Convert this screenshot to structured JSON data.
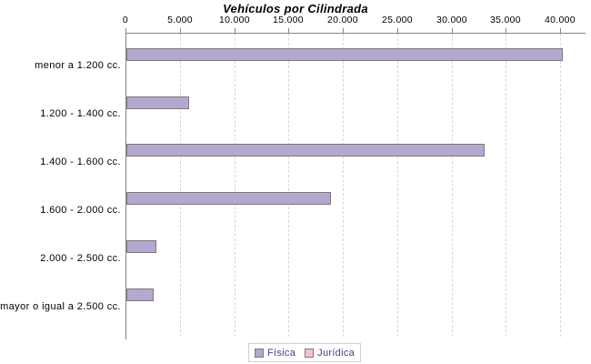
{
  "chart_data": {
    "type": "bar",
    "orientation": "horizontal",
    "title": "Vehículos por Cilindrada",
    "categories": [
      "menor a 1.200 cc.",
      "1.200 - 1.400 cc.",
      "1.400 - 1.600 cc.",
      "1.600 - 2.000 cc.",
      "2.000 - 2.500 cc.",
      "mayor o igual a 2.500 cc."
    ],
    "series": [
      {
        "name": "Física",
        "color": "#b4a8d1",
        "border_color": "#7a7a7a",
        "values": [
          40200,
          5800,
          33000,
          18800,
          2800,
          2500
        ]
      },
      {
        "name": "Jurídica",
        "color": "#f4c4c4",
        "border_color": "#7a7a7a",
        "values": [
          0,
          0,
          0,
          0,
          0,
          0
        ]
      }
    ],
    "x_axis": {
      "position": "top",
      "min": 0,
      "max": 40000,
      "tick_interval": 5000,
      "tick_labels": [
        "0",
        "5.000",
        "10.000",
        "15.000",
        "20.000",
        "25.000",
        "30.000",
        "35.000",
        "40.000"
      ],
      "gridlines": "dashed"
    },
    "legend": {
      "position": "bottom",
      "entries": [
        {
          "label": "Física",
          "color": "#b4a8d1"
        },
        {
          "label": "Jurídica",
          "color": "#f4c4c4"
        }
      ],
      "text_color": "#483d8b"
    }
  },
  "colors": {
    "background": "#ffffff",
    "axis": "#848484",
    "gridline": "#d8d8d8",
    "bar_border": "#7a7a7a",
    "legend_border": "#d0d0d0",
    "title_text": "#000000",
    "label_text": "#000000"
  }
}
